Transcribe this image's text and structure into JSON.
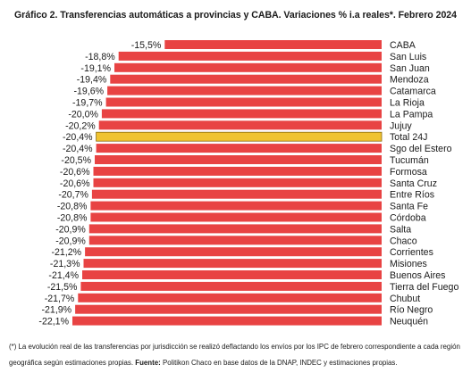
{
  "chart_data": {
    "type": "bar",
    "orientation": "horizontal",
    "title": "Gráfico 2. Transferencias automáticas a provincias y CABA. Variaciones % i.a reales*. Febrero 2024",
    "categories": [
      "CABA",
      "San Luis",
      "San Juan",
      "Mendoza",
      "Catamarca",
      "La Rioja",
      "La Pampa",
      "Jujuy",
      "Total 24J",
      "Sgo del Estero",
      "Tucumán",
      "Formosa",
      "Santa Cruz",
      "Entre Ríos",
      "Santa Fe",
      "Córdoba",
      "Salta",
      "Chaco",
      "Corrientes",
      "Misiones",
      "Buenos Aires",
      "Tierra del Fuego",
      "Chubut",
      "Río Negro",
      "Neuquén"
    ],
    "values": [
      -15.5,
      -18.8,
      -19.1,
      -19.4,
      -19.6,
      -19.7,
      -20.0,
      -20.2,
      -20.4,
      -20.4,
      -20.5,
      -20.6,
      -20.6,
      -20.7,
      -20.8,
      -20.8,
      -20.9,
      -20.9,
      -21.2,
      -21.3,
      -21.4,
      -21.5,
      -21.7,
      -21.9,
      -22.1
    ],
    "value_labels": [
      "-15,5%",
      "-18,8%",
      "-19,1%",
      "-19,4%",
      "-19,6%",
      "-19,7%",
      "-20,0%",
      "-20,2%",
      "-20,4%",
      "-20,4%",
      "-20,5%",
      "-20,6%",
      "-20,6%",
      "-20,7%",
      "-20,8%",
      "-20,8%",
      "-20,9%",
      "-20,9%",
      "-21,2%",
      "-21,3%",
      "-21,4%",
      "-21,5%",
      "-21,7%",
      "-21,9%",
      "-22,1%"
    ],
    "highlight_category": "Total 24J",
    "colors": {
      "bar": "#e84343",
      "highlight": "#f0c330",
      "highlight_border": "#8a6a10"
    },
    "xlim": [
      -22.1,
      0
    ],
    "grid": false,
    "legend": "none"
  },
  "footnote": {
    "text": "(*) La evolución real de las transferencias por jurisdicción se realizó deflactando los envíos por los IPC de febrero correspondiente a cada región geográfica según estimaciones propias.",
    "source_label": "Fuente:",
    "source_text": "Politikon Chaco en base datos de la DNAP, INDEC y estimaciones propias."
  }
}
